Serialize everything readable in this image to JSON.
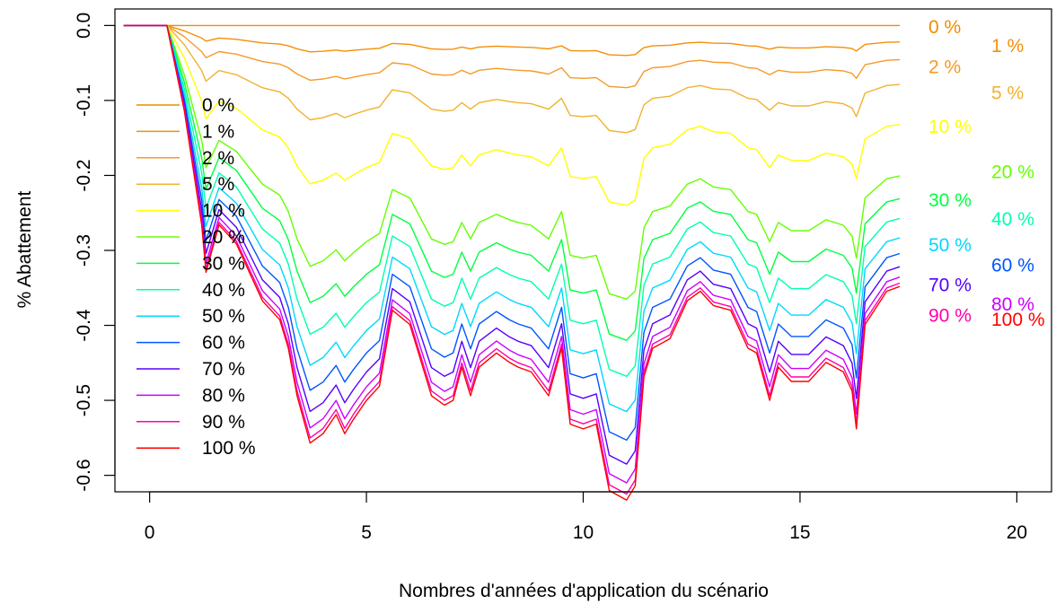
{
  "chart_data": {
    "type": "line",
    "xlabel": "Nombres d'années d'application du scénario",
    "ylabel": "% Abattement",
    "xlim": [
      -0.8,
      20.8
    ],
    "ylim": [
      -0.622,
      0.022
    ],
    "xticks": [
      0,
      5,
      10,
      15,
      20
    ],
    "xtick_labels": [
      "0",
      "5",
      "10",
      "15",
      "20"
    ],
    "yticks": [
      0.0,
      -0.1,
      -0.2,
      -0.3,
      -0.4,
      -0.5,
      -0.6
    ],
    "ytick_labels": [
      "0.0",
      "-0.1",
      "-0.2",
      "-0.3",
      "-0.4",
      "-0.5",
      "-0.6"
    ],
    "grid": false,
    "legend_position": "left",
    "x": [
      -0.6,
      0.4,
      0.8,
      1.2,
      1.3,
      1.6,
      2.0,
      2.3,
      2.6,
      3.0,
      3.2,
      3.4,
      3.7,
      4.0,
      4.3,
      4.5,
      4.7,
      5.0,
      5.3,
      5.6,
      6.0,
      6.5,
      6.8,
      7.0,
      7.2,
      7.4,
      7.6,
      8.0,
      8.3,
      8.5,
      8.8,
      9.2,
      9.5,
      9.7,
      10.0,
      10.3,
      10.6,
      11.0,
      11.2,
      11.4,
      11.6,
      12.0,
      12.4,
      12.7,
      13.0,
      13.4,
      13.8,
      14.0,
      14.3,
      14.5,
      14.8,
      15.2,
      15.6,
      16.0,
      16.2,
      16.3,
      16.5,
      17.0,
      17.3
    ],
    "profile": [
      0,
      0,
      0.18,
      0.42,
      0.52,
      0.42,
      0.46,
      0.52,
      0.58,
      0.62,
      0.68,
      0.78,
      0.88,
      0.86,
      0.82,
      0.86,
      0.83,
      0.79,
      0.76,
      0.6,
      0.63,
      0.78,
      0.8,
      0.79,
      0.72,
      0.78,
      0.72,
      0.69,
      0.71,
      0.72,
      0.73,
      0.78,
      0.68,
      0.84,
      0.85,
      0.84,
      0.98,
      1.0,
      0.97,
      0.74,
      0.68,
      0.66,
      0.58,
      0.56,
      0.59,
      0.6,
      0.68,
      0.69,
      0.79,
      0.72,
      0.75,
      0.75,
      0.71,
      0.73,
      0.77,
      0.85,
      0.63,
      0.56,
      0.55
    ],
    "series": [
      {
        "name": "0 %",
        "color": "#f08c00",
        "scale": 0.0,
        "end_label_y": -0.002
      },
      {
        "name": "1 %",
        "color": "#f58f05",
        "scale": 0.04,
        "end_label_y": -0.027
      },
      {
        "name": "2 %",
        "color": "#f59a2a",
        "scale": 0.083,
        "end_label_y": -0.055
      },
      {
        "name": "5 %",
        "color": "#f1b22e",
        "scale": 0.143,
        "end_label_y": -0.09
      },
      {
        "name": "10 %",
        "color": "#ffff00",
        "scale": 0.24,
        "end_label_y": -0.135
      },
      {
        "name": "20 %",
        "color": "#66ff00",
        "scale": 0.365,
        "end_label_y": -0.195
      },
      {
        "name": "30 %",
        "color": "#00ff40",
        "scale": 0.42,
        "end_label_y": -0.233
      },
      {
        "name": "40 %",
        "color": "#00ffb0",
        "scale": 0.468,
        "end_label_y": -0.258
      },
      {
        "name": "50 %",
        "color": "#00d7ff",
        "scale": 0.515,
        "end_label_y": -0.293
      },
      {
        "name": "60 %",
        "color": "#0055ff",
        "scale": 0.553,
        "end_label_y": -0.32
      },
      {
        "name": "70 %",
        "color": "#5500ff",
        "scale": 0.585,
        "end_label_y": -0.346
      },
      {
        "name": "80 %",
        "color": "#cc00ff",
        "scale": 0.61,
        "end_label_y": -0.372
      },
      {
        "name": "90 %",
        "color": "#ff00aa",
        "scale": 0.625,
        "end_label_y": -0.387
      },
      {
        "name": "100 %",
        "color": "#ff0000",
        "scale": 0.633,
        "end_label_y": -0.392
      }
    ]
  }
}
